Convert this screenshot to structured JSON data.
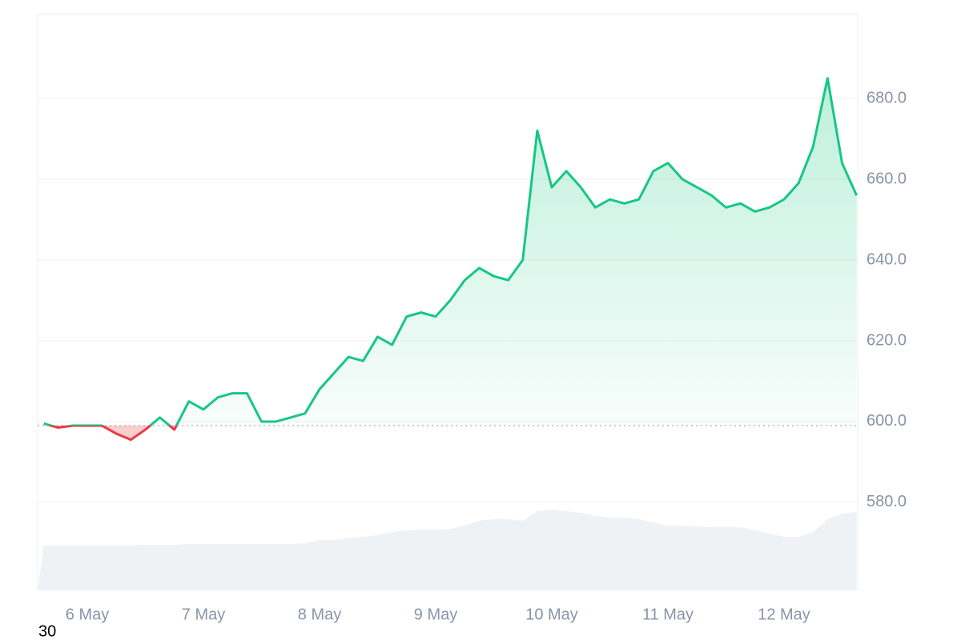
{
  "chart_data": {
    "type": "line",
    "categories": [
      null,
      null,
      null,
      "6 May",
      null,
      null,
      null,
      null,
      null,
      null,
      null,
      "7 May",
      null,
      null,
      null,
      null,
      null,
      null,
      null,
      "8 May",
      null,
      null,
      null,
      null,
      null,
      null,
      null,
      "9 May",
      null,
      null,
      null,
      null,
      null,
      null,
      null,
      "10 May",
      null,
      null,
      null,
      null,
      null,
      null,
      null,
      "11 May",
      null,
      null,
      null,
      null,
      null,
      null,
      null,
      "12 May",
      null,
      null,
      null,
      null,
      null
    ],
    "values": [
      599.5,
      598.5,
      599,
      599,
      599,
      597,
      595.5,
      598,
      601,
      598,
      605,
      603,
      606,
      607,
      607,
      600,
      600,
      601,
      602,
      608,
      612,
      616,
      615,
      621,
      619,
      626,
      627,
      626,
      630,
      635,
      638,
      636,
      635,
      640,
      672,
      658,
      662,
      658,
      653,
      655,
      654,
      655,
      662,
      664,
      660,
      658,
      656,
      653,
      654,
      652,
      653,
      655,
      659,
      668,
      685,
      664,
      656
    ],
    "volume": [
      55,
      55,
      55,
      55,
      55,
      55,
      55,
      56,
      56,
      56,
      57,
      57,
      57,
      57,
      57,
      57,
      57,
      57,
      58,
      62,
      62,
      64,
      66,
      68,
      72,
      74,
      75,
      75,
      76,
      80,
      86,
      88,
      88,
      86,
      98,
      100,
      98,
      96,
      92,
      90,
      90,
      88,
      84,
      80,
      80,
      79,
      78,
      78,
      78,
      74,
      70,
      66,
      66,
      72,
      88,
      95,
      97
    ],
    "baseline": 599,
    "up_color": "#16c784",
    "down_color": "#ea3943",
    "volume_color": "#eff2f5",
    "ylim": [
      558.4,
      700.8
    ],
    "yticks": [
      {
        "value": 580,
        "label": "580.0"
      },
      {
        "value": 600,
        "label": "600.0"
      },
      {
        "value": 620,
        "label": "620.0"
      },
      {
        "value": 640,
        "label": "640.0"
      },
      {
        "value": 660,
        "label": "660.0"
      },
      {
        "value": 680,
        "label": "680.0"
      }
    ],
    "grid": true,
    "footer_text": "30"
  }
}
